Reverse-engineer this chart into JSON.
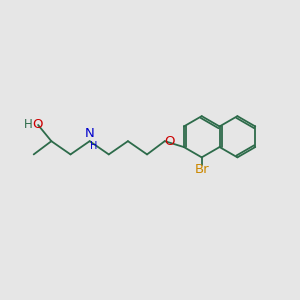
{
  "bg_color": "#e6e6e6",
  "bond_color": "#2d6b4a",
  "bond_lw": 1.3,
  "O_color": "#cc0000",
  "N_color": "#0000cc",
  "Br_color": "#cc8800",
  "font_size": 8.5,
  "fig_size": [
    3.0,
    3.0
  ],
  "dpi": 100,
  "xlim": [
    0,
    10
  ],
  "ylim": [
    0,
    10
  ]
}
